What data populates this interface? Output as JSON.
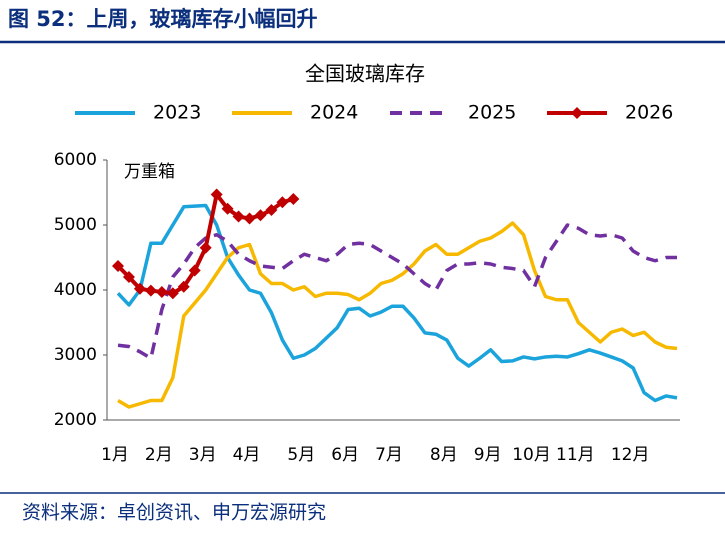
{
  "header": {
    "title": "图 52：上周，玻璃库存小幅回升"
  },
  "chart_data": {
    "type": "line",
    "title": "全国玻璃库存",
    "y_label": "万重箱",
    "categories": [
      "1月",
      null,
      null,
      null,
      "2月",
      null,
      null,
      null,
      "3月",
      null,
      null,
      null,
      "4月",
      null,
      null,
      null,
      null,
      "5月",
      null,
      null,
      null,
      "6月",
      null,
      null,
      null,
      "7月",
      null,
      null,
      null,
      null,
      "8月",
      null,
      null,
      null,
      "9月",
      null,
      null,
      null,
      "10月",
      null,
      null,
      null,
      "11月",
      null,
      null,
      null,
      null,
      "12月",
      null,
      null,
      null,
      null
    ],
    "ylim": [
      2000,
      6000
    ],
    "yticks": [
      2000,
      3000,
      4000,
      5000,
      6000
    ],
    "grid": false,
    "series": [
      {
        "name": "2023",
        "color": "#1ba3dc",
        "dash": false,
        "values": [
          3950,
          3770,
          4000,
          4720,
          4720,
          5000,
          5280,
          5290,
          5300,
          5000,
          4500,
          4230,
          4000,
          3950,
          3650,
          3230,
          2950,
          3000,
          3100,
          3260,
          3420,
          3700,
          3720,
          3600,
          3660,
          3750,
          3750,
          3570,
          3340,
          3320,
          3230,
          2950,
          2830,
          2950,
          3080,
          2900,
          2910,
          2970,
          2940,
          2970,
          2980,
          2970,
          3020,
          3080,
          3030,
          2970,
          2910,
          2800,
          2420,
          2300,
          2370,
          2340
        ]
      },
      {
        "name": "2024",
        "color": "#f7b800",
        "dash": false,
        "values": [
          2300,
          2200,
          2250,
          2300,
          2300,
          2650,
          3600,
          3800,
          4000,
          4250,
          4500,
          4650,
          4700,
          4250,
          4100,
          4100,
          4000,
          4050,
          3900,
          3950,
          3950,
          3930,
          3850,
          3950,
          4100,
          4150,
          4250,
          4400,
          4600,
          4700,
          4550,
          4550,
          4650,
          4750,
          4800,
          4900,
          5030,
          4850,
          4300,
          3900,
          3850,
          3850,
          3500,
          3350,
          3200,
          3350,
          3400,
          3300,
          3350,
          3200,
          3120,
          3100
        ]
      },
      {
        "name": "2025",
        "color": "#7030a0",
        "dash": true,
        "values": [
          3150,
          3130,
          3050,
          2950,
          3700,
          4200,
          4400,
          4650,
          4800,
          4850,
          4750,
          4550,
          4450,
          4370,
          4350,
          4330,
          4450,
          4550,
          4500,
          4450,
          4550,
          4700,
          4720,
          4700,
          4600,
          4500,
          4400,
          4250,
          4100,
          4000,
          4300,
          4400,
          4400,
          4420,
          4400,
          4350,
          4330,
          4300,
          4050,
          4500,
          4750,
          5000,
          4950,
          4850,
          4830,
          4850,
          4800,
          4600,
          4500,
          4450,
          4500,
          4500
        ]
      },
      {
        "name": "2026",
        "color": "#c00000",
        "dash": false,
        "marker": "diamond",
        "values": [
          4370,
          4200,
          4020,
          3990,
          3970,
          3950,
          4050,
          4300,
          4650,
          5470,
          5250,
          5130,
          5100,
          5150,
          5230,
          5350,
          5400,
          null,
          null,
          null,
          null,
          null,
          null,
          null,
          null,
          null,
          null,
          null,
          null,
          null,
          null,
          null,
          null,
          null,
          null,
          null,
          null,
          null,
          null,
          null,
          null,
          null,
          null,
          null,
          null,
          null,
          null,
          null,
          null,
          null,
          null,
          null
        ]
      }
    ]
  },
  "footer": {
    "source": "资料来源：卓创资讯、申万宏源研究"
  }
}
